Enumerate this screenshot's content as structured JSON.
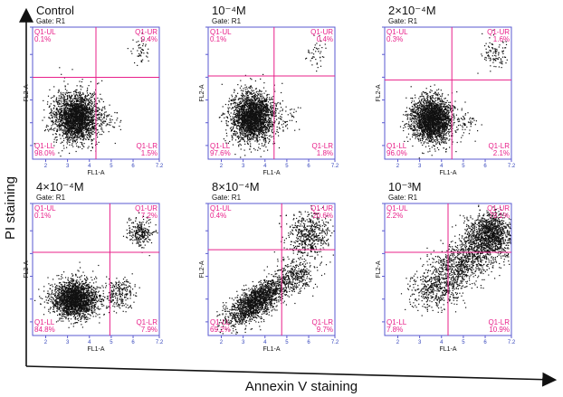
{
  "chart_data": {
    "type": "scatter",
    "figure_x_label": "Annexin V staining",
    "figure_y_label": "PI staining",
    "gate_label": "Gate: R1",
    "x_axis_label": "FL1-A",
    "y_axis_label": "FL2-A",
    "tick_labels": [
      "2",
      "3",
      "4",
      "5",
      "6",
      "7.2"
    ],
    "quadrant_names": [
      "Q1-UL",
      "Q1-UR",
      "Q1-LL",
      "Q1-LR"
    ],
    "axis_range_log10": [
      1.4,
      7.2
    ],
    "colors": {
      "frame": "#5a5ad0",
      "quadrant": "#e8208a",
      "dots": "#111111"
    },
    "panels": [
      {
        "title": "Control",
        "UL": "0.1%",
        "UR": "0.4%",
        "LL": "98.0%",
        "LR": "1.5%"
      },
      {
        "title": "10⁻⁴M",
        "UL": "0.1%",
        "UR": "0.4%",
        "LL": "97.6%",
        "LR": "1.8%"
      },
      {
        "title": "2×10⁻⁴M",
        "UL": "0.3%",
        "UR": "1.6%",
        "LL": "96.0%",
        "LR": "2.1%"
      },
      {
        "title": "4×10⁻⁴M",
        "UL": "0.1%",
        "UR": "7.2%",
        "LL": "84.8%",
        "LR": "7.9%"
      },
      {
        "title": "8×10⁻⁴M",
        "UL": "0.4%",
        "UR": "20.6%",
        "LL": "69.2%",
        "LR": "9.7%"
      },
      {
        "title": "10⁻³M",
        "UL": "2.2%",
        "UR": "79.1%",
        "LL": "7.8%",
        "LR": "10.9%"
      }
    ]
  }
}
